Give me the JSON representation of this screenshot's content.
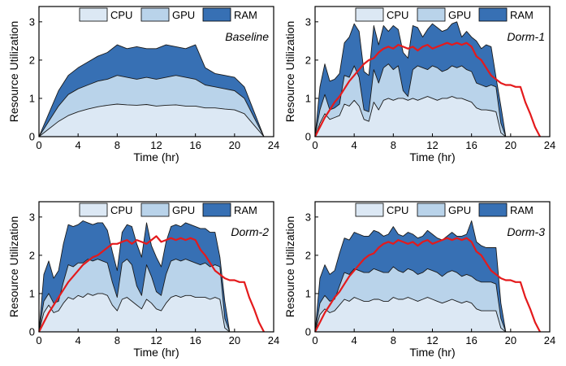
{
  "chart_data": [
    {
      "type": "area",
      "title": "Baseline",
      "xlabel": "Time (hr)",
      "ylabel": "Resource Utilization",
      "xlim": [
        0,
        24
      ],
      "ylim": [
        0,
        3.4
      ],
      "xticks": [
        0,
        4,
        8,
        12,
        16,
        20,
        24
      ],
      "yticks": [
        0,
        1,
        2,
        3
      ],
      "grid": false,
      "legend": {
        "position": "top",
        "entries": [
          "CPU",
          "GPU",
          "RAM"
        ]
      },
      "x": [
        0,
        1,
        2,
        3,
        4,
        5,
        6,
        7,
        8,
        9,
        10,
        11,
        12,
        13,
        14,
        15,
        16,
        17,
        18,
        19,
        20,
        21,
        22,
        23
      ],
      "series": [
        {
          "name": "CPU",
          "values": [
            0,
            0.2,
            0.4,
            0.55,
            0.65,
            0.72,
            0.78,
            0.82,
            0.85,
            0.83,
            0.82,
            0.84,
            0.8,
            0.82,
            0.83,
            0.8,
            0.8,
            0.75,
            0.75,
            0.72,
            0.7,
            0.6,
            0.3,
            0
          ]
        },
        {
          "name": "GPU",
          "values": [
            0,
            0.4,
            0.8,
            1.1,
            1.25,
            1.35,
            1.45,
            1.5,
            1.6,
            1.55,
            1.5,
            1.55,
            1.5,
            1.55,
            1.6,
            1.55,
            1.5,
            1.35,
            1.3,
            1.25,
            1.2,
            1.0,
            0.5,
            0
          ]
        },
        {
          "name": "RAM",
          "values": [
            0,
            0.6,
            1.2,
            1.6,
            1.8,
            1.95,
            2.1,
            2.2,
            2.4,
            2.3,
            2.35,
            2.3,
            2.3,
            2.4,
            2.35,
            2.3,
            2.4,
            1.8,
            1.65,
            1.6,
            1.55,
            1.3,
            0.65,
            0
          ]
        }
      ],
      "colors": {
        "CPU": "#dce8f4",
        "GPU": "#b9d3ea",
        "RAM": "#3770b4"
      }
    },
    {
      "type": "area",
      "title": "Dorm-1",
      "xlabel": "Time (hr)",
      "ylabel": "Resource Utilization",
      "xlim": [
        0,
        24
      ],
      "ylim": [
        0,
        3.4
      ],
      "xticks": [
        0,
        4,
        8,
        12,
        16,
        20,
        24
      ],
      "yticks": [
        0,
        1,
        2,
        3
      ],
      "grid": false,
      "legend": {
        "position": "top",
        "entries": [
          "CPU",
          "GPU",
          "RAM"
        ]
      },
      "x": [
        0,
        0.5,
        1,
        1.5,
        2,
        2.5,
        3,
        3.5,
        4,
        4.5,
        5,
        5.5,
        6,
        6.5,
        7,
        7.5,
        8,
        8.5,
        9,
        9.5,
        10,
        10.5,
        11,
        11.5,
        12,
        12.5,
        13,
        13.5,
        14,
        14.5,
        15,
        15.5,
        16,
        16.5,
        17,
        17.5,
        18,
        18.5,
        19,
        19.5
      ],
      "series": [
        {
          "name": "CPU",
          "values": [
            0,
            0.35,
            0.6,
            0.45,
            0.5,
            0.55,
            0.85,
            0.8,
            0.95,
            0.8,
            0.45,
            0.4,
            0.9,
            0.7,
            0.95,
            1.0,
            0.95,
            1.0,
            1.0,
            0.95,
            1.0,
            0.95,
            1.0,
            1.05,
            1.0,
            0.95,
            1.0,
            1.0,
            1.05,
            1.0,
            1.0,
            0.95,
            0.9,
            0.75,
            0.7,
            0.7,
            0.68,
            0.65,
            0.1,
            0
          ]
        },
        {
          "name": "GPU",
          "values": [
            0,
            0.7,
            1.1,
            0.7,
            0.75,
            0.85,
            1.6,
            1.55,
            1.85,
            1.55,
            0.7,
            0.65,
            1.75,
            1.4,
            1.8,
            1.9,
            1.75,
            1.85,
            1.2,
            1.05,
            1.75,
            1.85,
            1.8,
            1.75,
            1.85,
            1.8,
            1.7,
            1.75,
            1.85,
            1.8,
            1.85,
            1.75,
            1.7,
            1.4,
            1.35,
            1.3,
            1.35,
            1.3,
            0.35,
            0
          ]
        },
        {
          "name": "RAM",
          "values": [
            0,
            1.3,
            1.9,
            1.45,
            1.5,
            1.65,
            2.45,
            2.6,
            2.95,
            2.75,
            1.7,
            1.6,
            2.9,
            2.4,
            2.9,
            2.75,
            2.9,
            2.8,
            2.2,
            2.05,
            2.9,
            2.85,
            2.6,
            2.8,
            2.95,
            2.85,
            2.75,
            2.8,
            2.95,
            3.0,
            2.6,
            2.75,
            2.6,
            2.5,
            2.3,
            2.4,
            2.35,
            1.55,
            0.8,
            0
          ]
        },
        {
          "name": "Demand",
          "values": [
            0,
            0.25,
            0.5,
            0.7,
            0.9,
            1.05,
            1.25,
            1.45,
            1.6,
            1.75,
            1.9,
            2.0,
            2.05,
            2.2,
            2.3,
            2.35,
            2.3,
            2.4,
            2.35,
            2.3,
            2.35,
            2.25,
            2.35,
            2.4,
            2.3,
            2.35,
            2.4,
            2.45,
            2.4,
            2.45,
            2.4,
            2.45,
            2.35,
            2.1,
            2.0,
            1.8,
            1.6,
            1.5,
            1.4,
            1.35
          ]
        }
      ],
      "demand_tail_x": [
        20,
        20.5,
        21,
        21.5,
        22,
        22.5,
        23
      ],
      "demand_tail_values": [
        1.35,
        1.3,
        1.3,
        0.9,
        0.6,
        0.25,
        0
      ],
      "colors": {
        "CPU": "#dce8f4",
        "GPU": "#b9d3ea",
        "RAM": "#3770b4",
        "Demand": "#e41a1c"
      }
    },
    {
      "type": "area",
      "title": "Dorm-2",
      "xlabel": "Time (hr)",
      "ylabel": "Resource Utilization",
      "xlim": [
        0,
        24
      ],
      "ylim": [
        0,
        3.4
      ],
      "xticks": [
        0,
        4,
        8,
        12,
        16,
        20,
        24
      ],
      "yticks": [
        0,
        1,
        2,
        3
      ],
      "grid": false,
      "legend": {
        "position": "top",
        "entries": [
          "CPU",
          "GPU",
          "RAM"
        ]
      },
      "x": [
        0,
        0.5,
        1,
        1.5,
        2,
        2.5,
        3,
        3.5,
        4,
        4.5,
        5,
        5.5,
        6,
        6.5,
        7,
        7.5,
        8,
        8.5,
        9,
        9.5,
        10,
        10.5,
        11,
        11.5,
        12,
        12.5,
        13,
        13.5,
        14,
        14.5,
        15,
        15.5,
        16,
        16.5,
        17,
        17.5,
        18,
        18.5,
        19,
        19.5
      ],
      "series": [
        {
          "name": "CPU",
          "values": [
            0,
            0.5,
            0.7,
            0.5,
            0.55,
            0.75,
            0.9,
            0.85,
            0.95,
            0.9,
            1.0,
            0.95,
            1.0,
            1.0,
            0.95,
            0.7,
            0.55,
            0.85,
            0.9,
            0.8,
            0.7,
            0.6,
            0.85,
            0.75,
            0.6,
            0.55,
            0.75,
            0.9,
            0.95,
            0.9,
            0.95,
            0.95,
            0.9,
            0.9,
            0.9,
            0.85,
            0.9,
            0.85,
            0.1,
            0
          ]
        },
        {
          "name": "GPU",
          "values": [
            0,
            0.8,
            1.0,
            0.75,
            0.8,
            1.3,
            1.75,
            1.7,
            1.8,
            1.8,
            1.9,
            1.85,
            1.9,
            1.85,
            1.8,
            1.3,
            0.9,
            1.8,
            1.9,
            1.75,
            1.2,
            0.95,
            1.75,
            1.45,
            1.05,
            0.95,
            1.5,
            1.85,
            1.9,
            1.85,
            1.9,
            1.85,
            1.8,
            1.75,
            1.8,
            1.7,
            1.75,
            1.7,
            0.35,
            0
          ]
        },
        {
          "name": "RAM",
          "values": [
            0,
            1.5,
            1.85,
            1.4,
            1.6,
            2.3,
            2.8,
            2.75,
            2.8,
            2.9,
            2.85,
            2.8,
            2.85,
            2.85,
            2.65,
            2.1,
            1.6,
            2.6,
            2.8,
            2.75,
            2.3,
            1.95,
            2.85,
            2.25,
            1.95,
            1.7,
            2.35,
            2.75,
            2.8,
            2.75,
            2.85,
            2.8,
            2.75,
            2.7,
            2.7,
            2.6,
            2.6,
            1.95,
            0.8,
            0
          ]
        },
        {
          "name": "Demand",
          "values": [
            0,
            0.25,
            0.5,
            0.7,
            0.9,
            1.1,
            1.3,
            1.45,
            1.6,
            1.75,
            1.85,
            1.95,
            2.0,
            2.1,
            2.2,
            2.3,
            2.3,
            2.35,
            2.4,
            2.3,
            2.4,
            2.35,
            2.3,
            2.4,
            2.5,
            2.35,
            2.4,
            2.45,
            2.4,
            2.45,
            2.4,
            2.45,
            2.4,
            2.15,
            2.0,
            1.8,
            1.6,
            1.5,
            1.4,
            1.35
          ]
        }
      ],
      "demand_tail_x": [
        20,
        20.5,
        21,
        21.5,
        22,
        22.5,
        23
      ],
      "demand_tail_values": [
        1.35,
        1.3,
        1.3,
        0.9,
        0.6,
        0.25,
        0
      ],
      "colors": {
        "CPU": "#dce8f4",
        "GPU": "#b9d3ea",
        "RAM": "#3770b4",
        "Demand": "#e41a1c"
      }
    },
    {
      "type": "area",
      "title": "Dorm-3",
      "xlabel": "Time (hr)",
      "ylabel": "Resource Utilization",
      "xlim": [
        0,
        24
      ],
      "ylim": [
        0,
        3.4
      ],
      "xticks": [
        0,
        4,
        8,
        12,
        16,
        20,
        24
      ],
      "yticks": [
        0,
        1,
        2,
        3
      ],
      "grid": false,
      "legend": {
        "position": "top",
        "entries": [
          "CPU",
          "GPU",
          "RAM"
        ]
      },
      "x": [
        0,
        0.5,
        1,
        1.5,
        2,
        2.5,
        3,
        3.5,
        4,
        4.5,
        5,
        5.5,
        6,
        6.5,
        7,
        7.5,
        8,
        8.5,
        9,
        9.5,
        10,
        10.5,
        11,
        11.5,
        12,
        12.5,
        13,
        13.5,
        14,
        14.5,
        15,
        15.5,
        16,
        16.5,
        17,
        17.5,
        18,
        18.5,
        19,
        19.5
      ],
      "series": [
        {
          "name": "CPU",
          "values": [
            0,
            0.45,
            0.6,
            0.5,
            0.55,
            0.7,
            0.85,
            0.8,
            0.9,
            0.85,
            0.8,
            0.8,
            0.85,
            0.85,
            0.8,
            0.8,
            0.9,
            0.85,
            0.85,
            0.9,
            0.85,
            0.8,
            0.85,
            0.9,
            0.85,
            0.8,
            0.75,
            0.8,
            0.85,
            0.8,
            0.75,
            0.8,
            0.75,
            0.6,
            0.55,
            0.55,
            0.55,
            0.55,
            0.1,
            0
          ]
        },
        {
          "name": "GPU",
          "values": [
            0,
            0.75,
            0.95,
            0.8,
            0.85,
            1.2,
            1.55,
            1.5,
            1.65,
            1.6,
            1.55,
            1.55,
            1.65,
            1.6,
            1.55,
            1.55,
            1.7,
            1.6,
            1.55,
            1.65,
            1.6,
            1.5,
            1.55,
            1.65,
            1.6,
            1.55,
            1.45,
            1.55,
            1.6,
            1.55,
            1.45,
            1.5,
            1.45,
            1.35,
            1.3,
            1.3,
            1.3,
            1.25,
            0.35,
            0
          ]
        },
        {
          "name": "RAM",
          "values": [
            0,
            1.4,
            1.75,
            1.5,
            1.6,
            2.05,
            2.45,
            2.4,
            2.6,
            2.55,
            2.5,
            2.5,
            2.65,
            2.6,
            2.5,
            2.55,
            2.75,
            2.55,
            2.5,
            2.6,
            2.55,
            2.45,
            2.5,
            2.65,
            2.55,
            2.45,
            2.4,
            2.5,
            2.6,
            2.5,
            2.5,
            2.55,
            2.9,
            2.35,
            2.25,
            2.2,
            2.2,
            2.2,
            0.75,
            0
          ]
        },
        {
          "name": "Demand",
          "values": [
            0,
            0.25,
            0.5,
            0.7,
            0.9,
            1.05,
            1.25,
            1.45,
            1.6,
            1.75,
            1.9,
            2.0,
            2.05,
            2.2,
            2.3,
            2.35,
            2.3,
            2.4,
            2.35,
            2.3,
            2.35,
            2.25,
            2.35,
            2.4,
            2.3,
            2.35,
            2.4,
            2.45,
            2.4,
            2.45,
            2.4,
            2.45,
            2.35,
            2.1,
            2.0,
            1.8,
            1.6,
            1.5,
            1.4,
            1.35
          ]
        }
      ],
      "demand_tail_x": [
        20,
        20.5,
        21,
        21.5,
        22,
        22.5,
        23
      ],
      "demand_tail_values": [
        1.35,
        1.3,
        1.3,
        0.9,
        0.6,
        0.25,
        0
      ],
      "colors": {
        "CPU": "#dce8f4",
        "GPU": "#b9d3ea",
        "RAM": "#3770b4",
        "Demand": "#e41a1c"
      }
    }
  ]
}
